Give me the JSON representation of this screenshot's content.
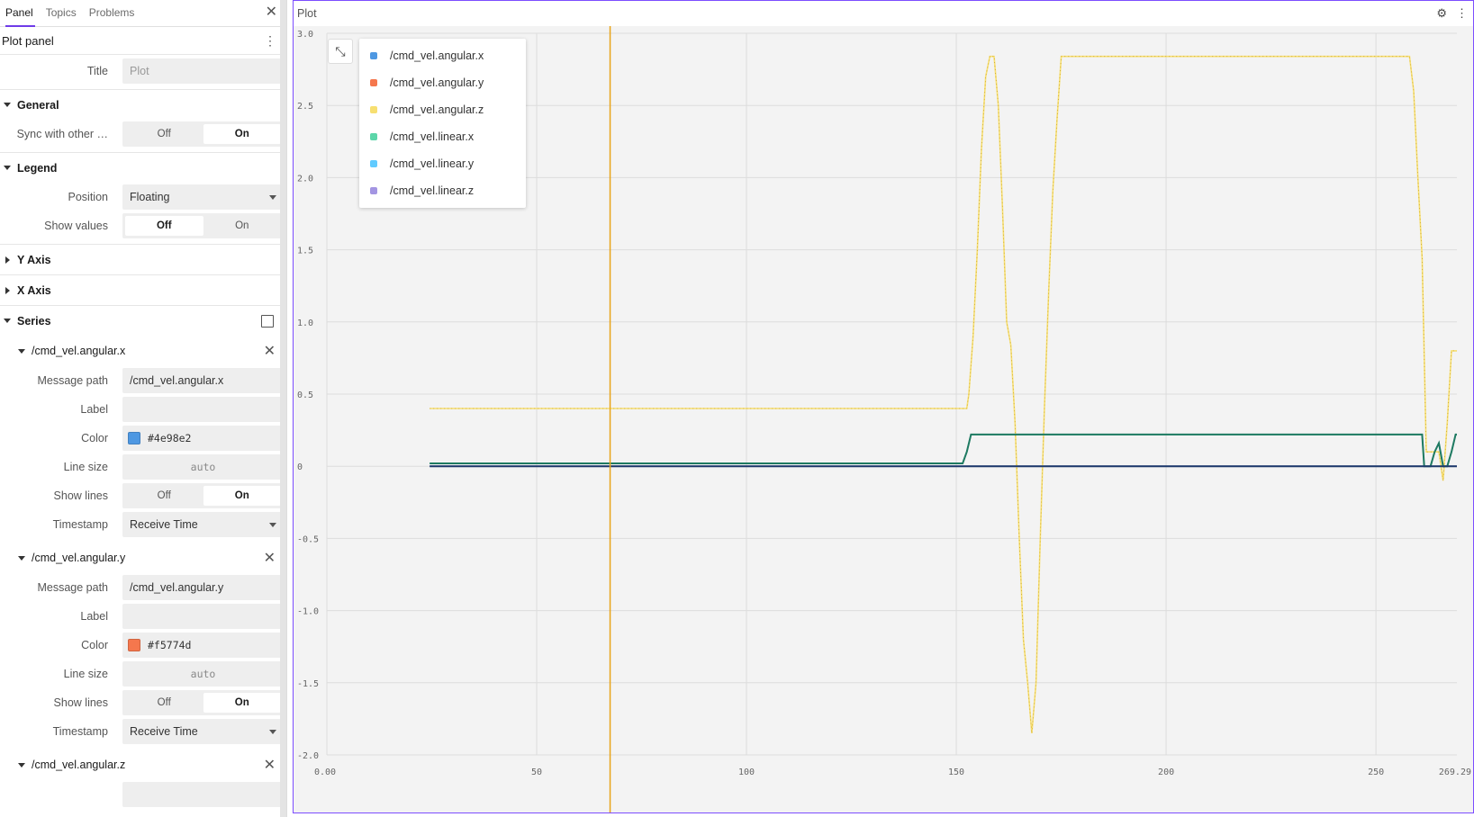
{
  "sidebar": {
    "tabs": [
      {
        "label": "Panel",
        "active": true
      },
      {
        "label": "Topics",
        "active": false
      },
      {
        "label": "Problems",
        "active": false
      }
    ],
    "close_icon": "close-icon",
    "panel_title": "Plot panel",
    "title_label": "Title",
    "title_placeholder": "Plot",
    "general": {
      "label": "General",
      "sync_label": "Sync with other …",
      "off": "Off",
      "on": "On",
      "selected": "On"
    },
    "legend": {
      "label": "Legend",
      "position_label": "Position",
      "position_value": "Floating",
      "show_values_label": "Show values",
      "off": "Off",
      "on": "On",
      "selected": "Off"
    },
    "y_axis_label": "Y Axis",
    "x_axis_label": "X Axis",
    "series_label": "Series",
    "series": [
      {
        "name": "/cmd_vel.angular.x",
        "message_path_label": "Message path",
        "message_path": "/cmd_vel.angular.x",
        "label_label": "Label",
        "color_label": "Color",
        "color": "#4e98e2",
        "line_size_label": "Line size",
        "line_size": "auto",
        "show_lines_label": "Show lines",
        "off": "Off",
        "on": "On",
        "timestamp_label": "Timestamp",
        "timestamp": "Receive Time"
      },
      {
        "name": "/cmd_vel.angular.y",
        "message_path_label": "Message path",
        "message_path": "/cmd_vel.angular.y",
        "label_label": "Label",
        "color_label": "Color",
        "color": "#f5774d",
        "line_size_label": "Line size",
        "line_size": "auto",
        "show_lines_label": "Show lines",
        "off": "Off",
        "on": "On",
        "timestamp_label": "Timestamp",
        "timestamp": "Receive Time"
      },
      {
        "name": "/cmd_vel.angular.z"
      }
    ]
  },
  "plot": {
    "title": "Plot",
    "settings_icon": "gear-icon",
    "menu_icon": "kebab-icon",
    "collapse_icon": "collapse-icon"
  },
  "chart_data": {
    "type": "line",
    "title": "",
    "xlim": [
      0,
      269.29
    ],
    "ylim": [
      -2.0,
      3.0
    ],
    "x_ticks": [
      "0.00",
      "50",
      "100",
      "150",
      "200",
      "250",
      "269.29"
    ],
    "y_ticks": [
      "3.0",
      "2.5",
      "2.0",
      "1.5",
      "1.0",
      "0.5",
      "0",
      "-0.5",
      "-1.0",
      "-1.5",
      "-2.0"
    ],
    "grid": true,
    "legend_position": "top-left",
    "cursor_x": 67.5,
    "series": [
      {
        "name": "/cmd_vel.angular.x",
        "color": "#4e98e2",
        "points": [
          [
            24.5,
            0
          ],
          [
            269.29,
            0
          ]
        ]
      },
      {
        "name": "/cmd_vel.angular.y",
        "color": "#f5774d",
        "points": [
          [
            24.5,
            0
          ],
          [
            269.29,
            0
          ]
        ]
      },
      {
        "name": "/cmd_vel.angular.z",
        "color": "#f7df71",
        "points": [
          [
            24.5,
            0.4
          ],
          [
            152.5,
            0.4
          ],
          [
            153,
            0.5
          ],
          [
            154,
            0.9
          ],
          [
            155,
            1.5
          ],
          [
            156,
            2.2
          ],
          [
            157,
            2.7
          ],
          [
            158,
            2.84
          ],
          [
            159,
            2.84
          ],
          [
            160,
            2.5
          ],
          [
            161,
            1.8
          ],
          [
            162,
            1.0
          ],
          [
            163,
            0.84
          ],
          [
            164,
            0.3
          ],
          [
            165,
            -0.5
          ],
          [
            166,
            -1.2
          ],
          [
            167,
            -1.5
          ],
          [
            168,
            -1.85
          ],
          [
            169,
            -1.5
          ],
          [
            170,
            -0.5
          ],
          [
            171,
            0.4
          ],
          [
            172,
            1.2
          ],
          [
            173,
            1.9
          ],
          [
            174,
            2.4
          ],
          [
            175,
            2.84
          ],
          [
            258,
            2.84
          ],
          [
            259,
            2.6
          ],
          [
            260,
            2.0
          ],
          [
            261,
            1.44
          ],
          [
            262,
            0.1
          ],
          [
            263,
            0.1
          ],
          [
            264,
            0.1
          ],
          [
            265,
            0.1
          ],
          [
            266,
            -0.1
          ],
          [
            267,
            0.3
          ],
          [
            268,
            0.8
          ],
          [
            269.29,
            0.8
          ]
        ]
      },
      {
        "name": "/cmd_vel.linear.x",
        "color": "#5cd6a9",
        "points": [
          [
            24.5,
            0.02
          ],
          [
            151.5,
            0.02
          ],
          [
            152.5,
            0.1
          ],
          [
            153.5,
            0.22
          ],
          [
            261,
            0.22
          ],
          [
            261.5,
            0
          ],
          [
            263,
            0
          ],
          [
            264,
            0.1
          ],
          [
            265,
            0.16
          ],
          [
            266,
            0
          ],
          [
            267,
            0
          ],
          [
            268,
            0.1
          ],
          [
            269,
            0.22
          ],
          [
            269.29,
            0.22
          ]
        ]
      },
      {
        "name": "/cmd_vel.linear.y",
        "color": "#61cbff",
        "points": [
          [
            24.5,
            0
          ],
          [
            269.29,
            0
          ]
        ]
      },
      {
        "name": "/cmd_vel.linear.z",
        "color": "#a395e2",
        "points": [
          [
            24.5,
            0
          ],
          [
            269.29,
            0
          ]
        ]
      }
    ]
  }
}
